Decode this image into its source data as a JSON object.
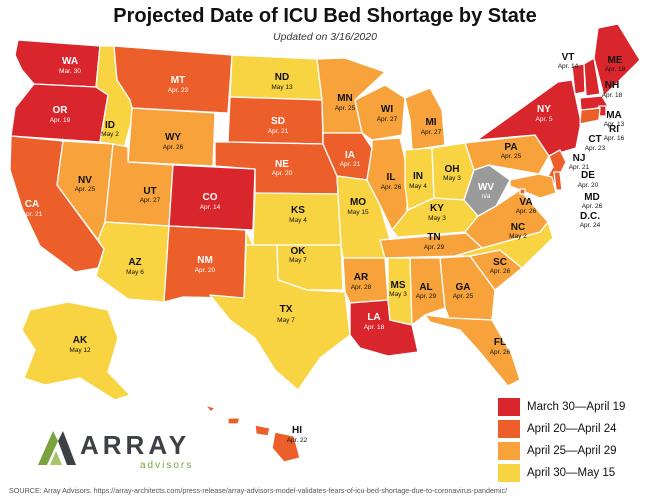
{
  "header": {
    "title": "Projected Date of ICU Bed Shortage by State",
    "subtitle": "Updated on 3/16/2020"
  },
  "legend": [
    {
      "label": "March 30—April 19",
      "color": "#d9262c"
    },
    {
      "label": "April 20—April 24",
      "color": "#ec5f2b"
    },
    {
      "label": "April 25—April 29",
      "color": "#f7a23a"
    },
    {
      "label": "April 30—May 15",
      "color": "#f8d443"
    }
  ],
  "na_color": "#9a9a9a",
  "states": {
    "WA": {
      "date": "Mar. 30",
      "cat": 0
    },
    "OR": {
      "date": "Apr. 19",
      "cat": 0
    },
    "CA": {
      "date": "Apr. 21",
      "cat": 1
    },
    "NV": {
      "date": "Apr. 25",
      "cat": 2
    },
    "ID": {
      "date": "May 2",
      "cat": 3
    },
    "MT": {
      "date": "Apr. 23",
      "cat": 1
    },
    "WY": {
      "date": "Apr. 26",
      "cat": 2
    },
    "UT": {
      "date": "Apr. 27",
      "cat": 2
    },
    "AZ": {
      "date": "May 6",
      "cat": 3
    },
    "CO": {
      "date": "Apr. 14",
      "cat": 0
    },
    "NM": {
      "date": "Apr. 20",
      "cat": 1
    },
    "ND": {
      "date": "May 13",
      "cat": 3
    },
    "SD": {
      "date": "Apr. 21",
      "cat": 1
    },
    "NE": {
      "date": "Apr. 20",
      "cat": 1
    },
    "KS": {
      "date": "May 4",
      "cat": 3
    },
    "OK": {
      "date": "May 7",
      "cat": 3
    },
    "TX": {
      "date": "May 7",
      "cat": 3
    },
    "MN": {
      "date": "Apr. 25",
      "cat": 2
    },
    "IA": {
      "date": "Apr. 21",
      "cat": 1
    },
    "MO": {
      "date": "May 15",
      "cat": 3
    },
    "AR": {
      "date": "Apr. 28",
      "cat": 2
    },
    "LA": {
      "date": "Apr. 18",
      "cat": 0
    },
    "WI": {
      "date": "Apr. 27",
      "cat": 2
    },
    "IL": {
      "date": "Apr. 26",
      "cat": 2
    },
    "MI": {
      "date": "Apr. 27",
      "cat": 2
    },
    "IN": {
      "date": "May 4",
      "cat": 3
    },
    "OH": {
      "date": "May 3",
      "cat": 3
    },
    "KY": {
      "date": "May 3",
      "cat": 3
    },
    "TN": {
      "date": "Apr. 29",
      "cat": 2
    },
    "MS": {
      "date": "May 3",
      "cat": 3
    },
    "AL": {
      "date": "Apr. 29",
      "cat": 2
    },
    "GA": {
      "date": "Apr. 25",
      "cat": 2
    },
    "FL": {
      "date": "Apr. 26",
      "cat": 2
    },
    "SC": {
      "date": "Apr. 26",
      "cat": 2
    },
    "NC": {
      "date": "May 2",
      "cat": 3
    },
    "VA": {
      "date": "Apr. 26",
      "cat": 2
    },
    "WV": {
      "date": "n/a",
      "cat": -1
    },
    "PA": {
      "date": "Apr. 25",
      "cat": 2
    },
    "NY": {
      "date": "Apr. 5",
      "cat": 0
    },
    "VT": {
      "date": "Apr. 14",
      "cat": 0
    },
    "NH": {
      "date": "Apr. 18",
      "cat": 0
    },
    "ME": {
      "date": "Apr. 18",
      "cat": 0
    },
    "MA": {
      "date": "Apr. 13",
      "cat": 0
    },
    "RI": {
      "date": "Apr. 16",
      "cat": 0
    },
    "CT": {
      "date": "Apr. 23",
      "cat": 1
    },
    "NJ": {
      "date": "Apr. 21",
      "cat": 1
    },
    "DE": {
      "date": "Apr. 20",
      "cat": 1
    },
    "MD": {
      "date": "Apr. 26",
      "cat": 2
    },
    "D.C.": {
      "date": "Apr. 24",
      "cat": 1
    },
    "AK": {
      "date": "May 12",
      "cat": 3
    },
    "HI": {
      "date": "Apr. 22",
      "cat": 1
    }
  },
  "logo": {
    "word": "ARRAY",
    "sub": "advisors"
  },
  "source": "SOURCE: Array Advisors. https://array-architects.com/press-release/array-advisors-model-validates-fears-of-icu-bed-shortage-due-to-coronavirus-pandemic/"
}
